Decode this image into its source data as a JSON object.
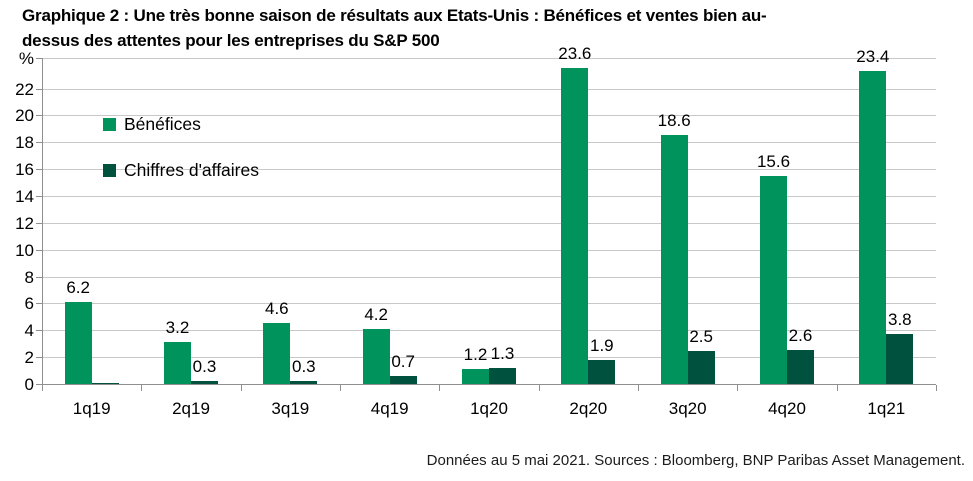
{
  "title": {
    "line1": "Graphique 2 : Une très bonne saison de résultats aux Etats-Unis : Bénéfices et ventes bien au-",
    "line2": "dessus des attentes pour les entreprises du S&P 500"
  },
  "footer": {
    "text": "Données au 5 mai 2021. Sources : Bloomberg, BNP Paribas Asset Management."
  },
  "colors": {
    "benefices": "#00935b",
    "chiffres": "#00523e",
    "gridline": "#c8c8c8",
    "axis": "#8f8f8f",
    "text": "#000000"
  },
  "chart_data": {
    "type": "bar",
    "categories": [
      "1q19",
      "2q19",
      "3q19",
      "4q19",
      "1q20",
      "2q20",
      "3q20",
      "4q20",
      "1q21"
    ],
    "series": [
      {
        "name": "Bénéfices",
        "color_key": "benefices",
        "values": [
          6.2,
          3.2,
          4.6,
          4.2,
          1.2,
          23.6,
          18.6,
          15.6,
          23.4
        ],
        "data_labels": [
          "6.2",
          "3.2",
          "4.6",
          "4.2",
          "1.2",
          "23.6",
          "18.6",
          "15.6",
          "23.4"
        ]
      },
      {
        "name": "Chiffres d'affaires",
        "color_key": "chiffres",
        "values": [
          0.1,
          0.3,
          0.3,
          0.7,
          1.3,
          1.9,
          2.5,
          2.6,
          3.8
        ],
        "data_labels": [
          "",
          "0.3",
          "0.3",
          "0.7",
          "1.3",
          "1.9",
          "2.5",
          "2.6",
          "3.8"
        ]
      }
    ],
    "y_axis": {
      "unit": "%",
      "ticks": [
        0,
        2,
        4,
        6,
        8,
        10,
        12,
        14,
        16,
        18,
        20,
        22
      ],
      "ylim": [
        0,
        24.35
      ]
    },
    "grid": true,
    "legend_position": "upper-left"
  }
}
